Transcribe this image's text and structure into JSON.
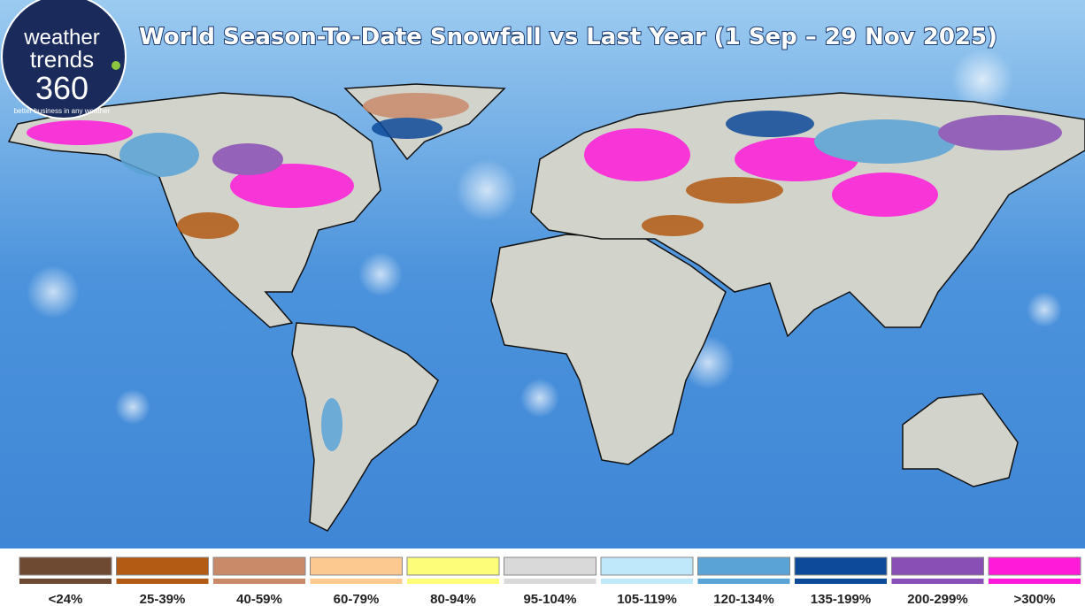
{
  "title": "World Season-To-Date Snowfall vs Last Year (1 Sep – 29 Nov 2025)",
  "logo": {
    "line1": "weather",
    "line2": "trends",
    "line3": "360",
    "tagline": "better business in any weather"
  },
  "legend": [
    {
      "label": "<24%",
      "color": "#6e4a33"
    },
    {
      "label": "25-39%",
      "color": "#b35a14"
    },
    {
      "label": "40-59%",
      "color": "#c98a6a"
    },
    {
      "label": "60-79%",
      "color": "#fcc990"
    },
    {
      "label": "80-94%",
      "color": "#fdfd7a"
    },
    {
      "label": "95-104%",
      "color": "#d9d9d9"
    },
    {
      "label": "105-119%",
      "color": "#bfe8fb"
    },
    {
      "label": "120-134%",
      "color": "#5aa3d6"
    },
    {
      "label": "135-199%",
      "color": "#0d4a9a"
    },
    {
      "label": "200-299%",
      "color": "#8a4fb5"
    },
    {
      "label": ">300%",
      "color": "#ff1ad9"
    }
  ]
}
